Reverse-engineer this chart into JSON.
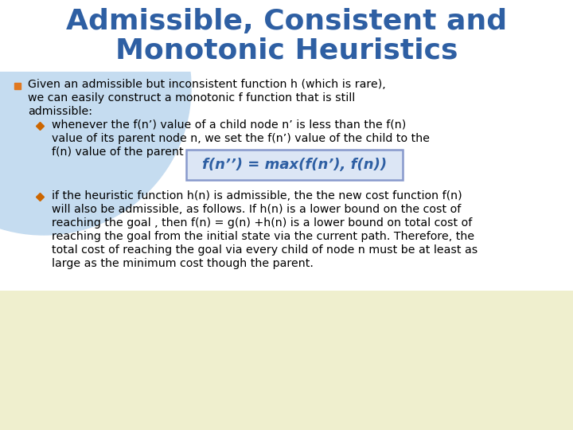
{
  "title_line1": "Admissible, Consistent and",
  "title_line2": "Monotonic Heuristics",
  "title_color": "#2E5FA3",
  "background_color": "#FFFFFF",
  "bg_circle_color": "#C5DCF0",
  "bg_bottom_color": "#EFEFCE",
  "bullet_color": "#E07820",
  "diamond_color": "#CC6600",
  "body_text_color": "#000000",
  "formula_text": "f(n’’) = max(f(n’), f(n))",
  "formula_box_bg": "#DCE6F5",
  "formula_box_edge": "#8899CC",
  "formula_text_color": "#2E5FA3",
  "main_bullet": "Given an admissible but inconsistent function h (which is rare),\nwe can easily construct a monotonic f function that is still\nadmissible:",
  "sub_bullet1_lines": [
    "whenever the f(n’) value of a child node n’ is less than the f(n)",
    "value of its parent node n, we set the f(n’) value of the child to the",
    "f(n) value of the parent"
  ],
  "sub_bullet2_lines": [
    "if the heuristic function h(n) is admissible, the the new cost function f(n)",
    "will also be admissible, as follows. If h(n) is a lower bound on the cost of",
    "reaching the goal , then f(n) = g(n) +h(n) is a lower bound on total cost of",
    "reaching the goal from the initial state via the current path. Therefore, the",
    "total cost of reaching the goal via every child of node n must be at least as",
    "large as the minimum cost though the parent."
  ]
}
